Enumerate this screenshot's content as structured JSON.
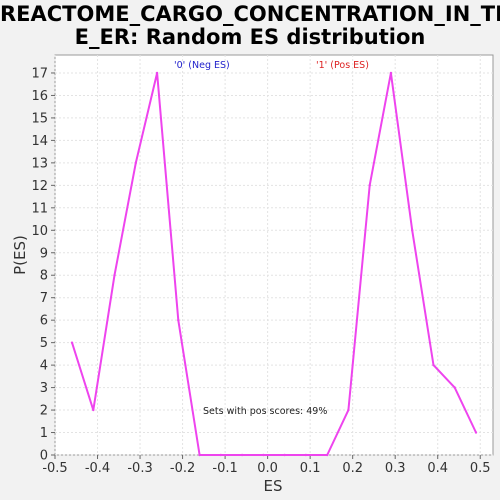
{
  "chart_data": {
    "type": "line",
    "title": "REACTOME_CARGO_CONCENTRATION_IN_THE_ER: Random ES distribution",
    "title_lines": [
      "REACTOME_CARGO_CONCENTRATION_IN_TH",
      "E_ER: Random ES distribution"
    ],
    "xlabel": "ES",
    "ylabel": "P(ES)",
    "xlim": [
      -0.5,
      0.53
    ],
    "ylim": [
      0,
      17.8
    ],
    "x_ticks": [
      -0.5,
      -0.4,
      -0.3,
      -0.2,
      -0.1,
      0.0,
      0.1,
      0.2,
      0.3,
      0.4,
      0.5
    ],
    "x_tick_labels": [
      "-0.5",
      "-0.4",
      "-0.3",
      "-0.2",
      "-0.1",
      "0.0",
      "0.1",
      "0.2",
      "0.3",
      "0.4",
      "0.5"
    ],
    "y_ticks": [
      0,
      1,
      2,
      3,
      4,
      5,
      6,
      7,
      8,
      9,
      10,
      11,
      12,
      13,
      14,
      15,
      16,
      17
    ],
    "y_tick_labels": [
      "0",
      "1",
      "2",
      "3",
      "4",
      "5",
      "6",
      "7",
      "8",
      "9",
      "10",
      "11",
      "12",
      "13",
      "14",
      "15",
      "16",
      "17"
    ],
    "grid": true,
    "series": [
      {
        "color": "#ee44ee",
        "x": [
          -0.46,
          -0.41,
          -0.36,
          -0.31,
          -0.26,
          -0.21,
          -0.16,
          -0.11,
          -0.06,
          -0.01,
          0.04,
          0.09,
          0.14,
          0.19,
          0.24,
          0.29,
          0.34,
          0.39,
          0.44,
          0.49
        ],
        "y": [
          5,
          2,
          8,
          13,
          17,
          6,
          0,
          0,
          0,
          0,
          0,
          0,
          0,
          2,
          12,
          17,
          10,
          4,
          3,
          1
        ]
      }
    ],
    "legend": [
      {
        "label": "'0' (Neg ES)",
        "color": "#2222cc"
      },
      {
        "label": "'1' (Pos ES)",
        "color": "#dd2222"
      }
    ],
    "annotation": "Sets with pos scores: 49%"
  }
}
